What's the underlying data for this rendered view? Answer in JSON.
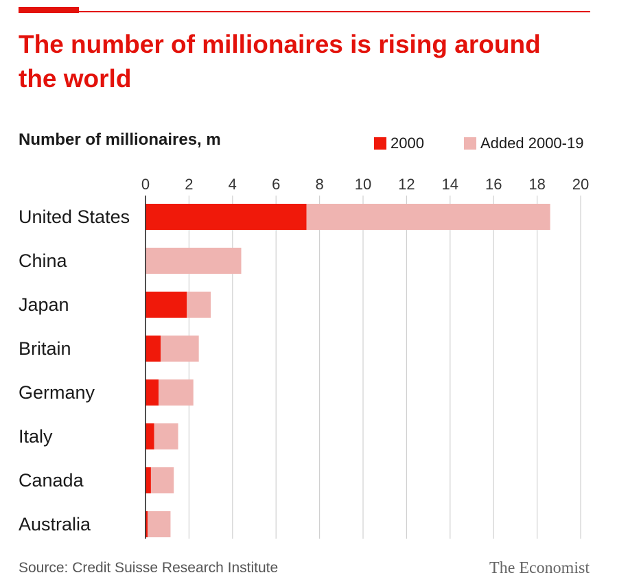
{
  "header": {
    "title": "The number of millionaires is rising around the world"
  },
  "colors": {
    "accent": "#e3120b",
    "series_2000": "#f0190a",
    "series_added": "#efb4b1",
    "grid": "#d0d0d0"
  },
  "chart_data": {
    "type": "bar",
    "orientation": "horizontal",
    "stacked": true,
    "title": "Number of millionaires, m",
    "categories": [
      "United States",
      "China",
      "Japan",
      "Britain",
      "Germany",
      "Italy",
      "Canada",
      "Australia"
    ],
    "series": [
      {
        "name": "2000",
        "values": [
          7.4,
          0.0,
          1.9,
          0.7,
          0.6,
          0.4,
          0.25,
          0.1
        ]
      },
      {
        "name": "Added 2000-19",
        "values": [
          11.2,
          4.4,
          1.1,
          1.75,
          1.6,
          1.1,
          1.05,
          1.05
        ]
      }
    ],
    "xlim": [
      0,
      20
    ],
    "xticks": [
      "0",
      "2",
      "4",
      "6",
      "8",
      "10",
      "12",
      "14",
      "16",
      "18",
      "20"
    ],
    "grid": true,
    "legend_position": "top-right"
  },
  "legend": {
    "label_2000": "2000",
    "label_added": "Added 2000-19"
  },
  "footer": {
    "source": "Source: Credit Suisse Research Institute",
    "brand": "The Economist"
  }
}
